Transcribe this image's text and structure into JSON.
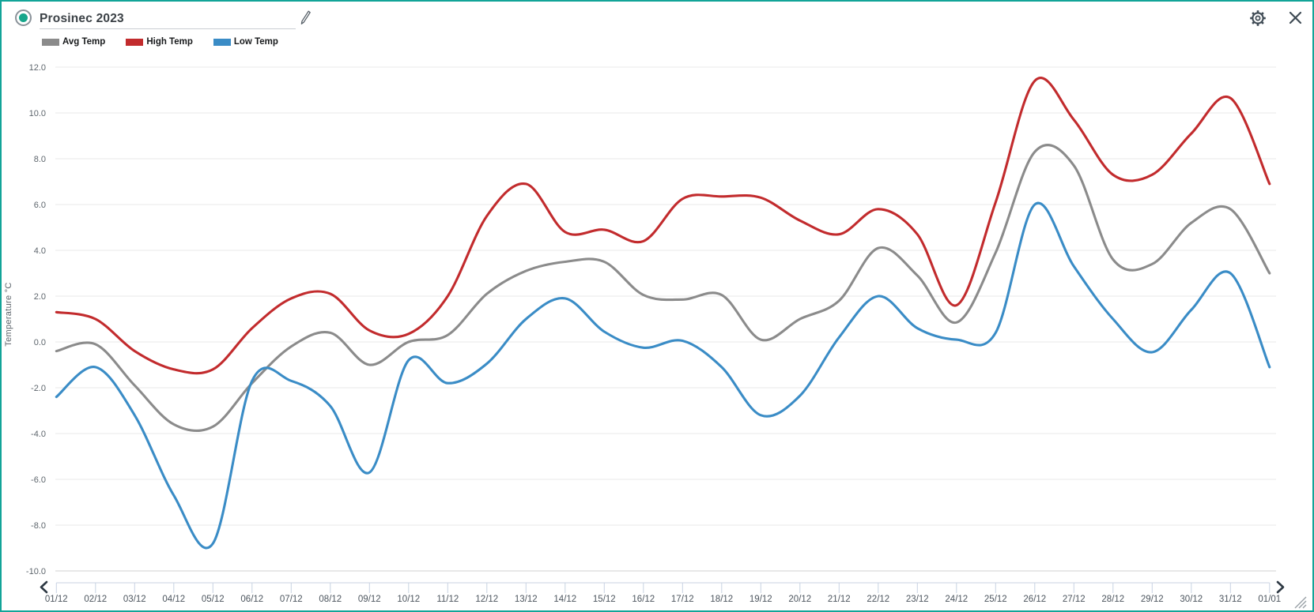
{
  "header": {
    "title": "Prosinec 2023",
    "icons": {
      "radio": "radio-selected-icon",
      "edit": "pencil-icon",
      "settings": "gear-icon",
      "close": "x-icon"
    }
  },
  "legend": [
    {
      "label": "Avg Temp",
      "color": "#8b8b8b"
    },
    {
      "label": "High Temp",
      "color": "#c22b2d"
    },
    {
      "label": "Low Temp",
      "color": "#3a8cc6"
    }
  ],
  "chart_data": {
    "type": "line",
    "smoothing": "spline",
    "title": "Prosinec 2023",
    "xlabel": "",
    "ylabel": "Temperature °C",
    "ylim": [
      -10,
      12
    ],
    "ytick_step": 2,
    "ytick_labels": [
      "12.0",
      "10.0",
      "8.0",
      "6.0",
      "4.0",
      "2.0",
      "0.0",
      "-2.0",
      "-4.0",
      "-6.0",
      "-8.0",
      "-10.0"
    ],
    "grid": true,
    "legend_position": "top-left",
    "categories": [
      "01/12",
      "02/12",
      "03/12",
      "04/12",
      "05/12",
      "06/12",
      "07/12",
      "08/12",
      "09/12",
      "10/12",
      "11/12",
      "12/12",
      "13/12",
      "14/12",
      "15/12",
      "16/12",
      "17/12",
      "18/12",
      "19/12",
      "20/12",
      "21/12",
      "22/12",
      "23/12",
      "24/12",
      "25/12",
      "26/12",
      "27/12",
      "28/12",
      "29/12",
      "30/12",
      "31/12",
      "01/01"
    ],
    "series": [
      {
        "name": "Avg Temp",
        "color": "#8b8b8b",
        "values": [
          -0.4,
          -0.1,
          -1.9,
          -3.6,
          -3.7,
          -1.8,
          -0.2,
          0.4,
          -1.0,
          0.0,
          0.3,
          2.1,
          3.1,
          3.5,
          3.5,
          2.05,
          1.85,
          2.05,
          0.1,
          1.0,
          1.8,
          4.1,
          2.9,
          0.85,
          3.9,
          8.3,
          7.7,
          3.6,
          3.4,
          5.2,
          5.8,
          3.0
        ]
      },
      {
        "name": "High Temp",
        "color": "#c22b2d",
        "values": [
          1.3,
          1.0,
          -0.4,
          -1.2,
          -1.2,
          0.6,
          1.9,
          2.1,
          0.5,
          0.35,
          2.0,
          5.5,
          6.9,
          4.8,
          4.9,
          4.4,
          6.25,
          6.35,
          6.3,
          5.3,
          4.7,
          5.8,
          4.7,
          1.6,
          6.1,
          11.4,
          9.7,
          7.3,
          7.3,
          9.1,
          10.65,
          6.9
        ]
      },
      {
        "name": "Low Temp",
        "color": "#3a8cc6",
        "values": [
          -2.4,
          -1.1,
          -3.2,
          -6.7,
          -8.8,
          -1.7,
          -1.7,
          -2.8,
          -5.7,
          -0.8,
          -1.8,
          -0.95,
          1.0,
          1.9,
          0.45,
          -0.25,
          0.05,
          -1.1,
          -3.2,
          -2.35,
          0.2,
          2.0,
          0.6,
          0.1,
          0.4,
          6.0,
          3.3,
          1.0,
          -0.45,
          1.4,
          3.0,
          -1.1
        ]
      }
    ]
  },
  "scrollbar": {
    "left_arrow": "chevron-left-icon",
    "right_arrow": "chevron-right-icon",
    "resize": "resize-handle-icon"
  },
  "colors": {
    "accent": "#12a498",
    "grid": "#eaeaea",
    "axis": "#d2d2d2",
    "scroll_tick": "#c8d2e2",
    "x_label": "#4c555e",
    "y_label": "#5d656c",
    "icon": "#3e4a54",
    "chevron": "#2d3843"
  }
}
